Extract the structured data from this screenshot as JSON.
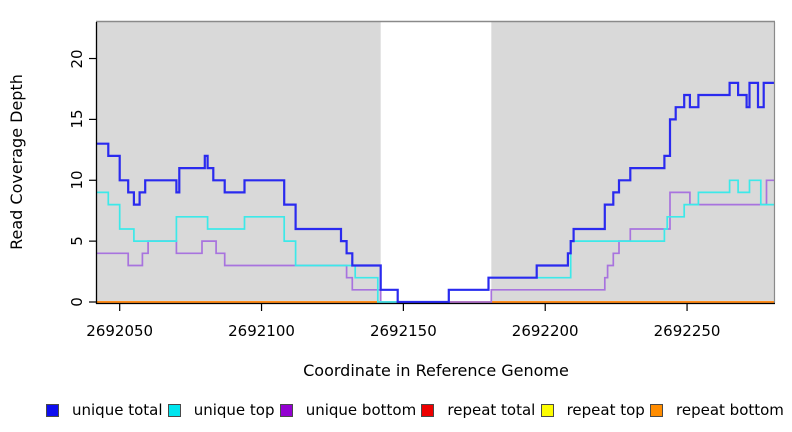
{
  "chart_data": {
    "type": "line",
    "subtype": "step",
    "title": "",
    "xlabel": "Coordinate in Reference Genome",
    "ylabel": "Read Coverage Depth",
    "x_range": [
      2692042,
      2692281
    ],
    "y_range": [
      0,
      23
    ],
    "x_ticks": [
      2692050,
      2692100,
      2692150,
      2692200,
      2692250
    ],
    "y_ticks": [
      0,
      5,
      10,
      15,
      20
    ],
    "grid": false,
    "legend_position": "bottom",
    "panel_background": "#d9d9d9",
    "outer_background": "#ffffff",
    "unshaded_x_region": [
      2692142,
      2692181
    ],
    "box_color": "#8a8a8a",
    "axis_color": "#000000",
    "draw_order": [
      "repeat top",
      "repeat total",
      "repeat bottom",
      "unique bottom",
      "unique top",
      "unique total"
    ],
    "series": [
      {
        "name": "unique total",
        "legend_color": "#0d0df0",
        "line_color": "#2a2aef",
        "line_width": 2.2,
        "points": [
          [
            2692042,
            13
          ],
          [
            2692046,
            12
          ],
          [
            2692050,
            10
          ],
          [
            2692053,
            9
          ],
          [
            2692055,
            8
          ],
          [
            2692057,
            9
          ],
          [
            2692059,
            10
          ],
          [
            2692070,
            9
          ],
          [
            2692071,
            11
          ],
          [
            2692080,
            12
          ],
          [
            2692081,
            11
          ],
          [
            2692083,
            10
          ],
          [
            2692087,
            9
          ],
          [
            2692094,
            10
          ],
          [
            2692108,
            8
          ],
          [
            2692112,
            6
          ],
          [
            2692128,
            5
          ],
          [
            2692130,
            4
          ],
          [
            2692132,
            3
          ],
          [
            2692142,
            1
          ],
          [
            2692148,
            0
          ],
          [
            2692166,
            1
          ],
          [
            2692180,
            2
          ],
          [
            2692197,
            3
          ],
          [
            2692208,
            4
          ],
          [
            2692209,
            5
          ],
          [
            2692210,
            6
          ],
          [
            2692221,
            8
          ],
          [
            2692224,
            9
          ],
          [
            2692226,
            10
          ],
          [
            2692230,
            11
          ],
          [
            2692242,
            12
          ],
          [
            2692244,
            15
          ],
          [
            2692246,
            16
          ],
          [
            2692249,
            17
          ],
          [
            2692251,
            16
          ],
          [
            2692254,
            17
          ],
          [
            2692265,
            18
          ],
          [
            2692268,
            17
          ],
          [
            2692271,
            16
          ],
          [
            2692272,
            18
          ],
          [
            2692275,
            16
          ],
          [
            2692277,
            18
          ],
          [
            2692281,
            18
          ]
        ]
      },
      {
        "name": "unique top",
        "legend_color": "#00e5ee",
        "line_color": "#3ce9e9",
        "line_width": 1.7,
        "points": [
          [
            2692042,
            9
          ],
          [
            2692046,
            8
          ],
          [
            2692050,
            6
          ],
          [
            2692055,
            5
          ],
          [
            2692070,
            7
          ],
          [
            2692081,
            6
          ],
          [
            2692094,
            7
          ],
          [
            2692108,
            5
          ],
          [
            2692112,
            3
          ],
          [
            2692133,
            2
          ],
          [
            2692141,
            0
          ],
          [
            2692166,
            1
          ],
          [
            2692180,
            2
          ],
          [
            2692209,
            5
          ],
          [
            2692242,
            6
          ],
          [
            2692243,
            7
          ],
          [
            2692249,
            8
          ],
          [
            2692254,
            9
          ],
          [
            2692265,
            10
          ],
          [
            2692268,
            9
          ],
          [
            2692272,
            10
          ],
          [
            2692276,
            8
          ],
          [
            2692281,
            8
          ]
        ]
      },
      {
        "name": "unique bottom",
        "legend_color": "#9301d1",
        "line_color": "#a873de",
        "line_width": 1.7,
        "points": [
          [
            2692042,
            4
          ],
          [
            2692053,
            3
          ],
          [
            2692058,
            4
          ],
          [
            2692060,
            5
          ],
          [
            2692070,
            4
          ],
          [
            2692079,
            5
          ],
          [
            2692084,
            4
          ],
          [
            2692087,
            3
          ],
          [
            2692130,
            2
          ],
          [
            2692132,
            1
          ],
          [
            2692142,
            0
          ],
          [
            2692181,
            1
          ],
          [
            2692221,
            2
          ],
          [
            2692222,
            3
          ],
          [
            2692224,
            4
          ],
          [
            2692226,
            5
          ],
          [
            2692230,
            6
          ],
          [
            2692244,
            9
          ],
          [
            2692251,
            8
          ],
          [
            2692278,
            10
          ],
          [
            2692281,
            10
          ]
        ]
      },
      {
        "name": "repeat total",
        "legend_color": "#ee0000",
        "line_color": "#e8445c",
        "line_width": 1.7,
        "points": [
          [
            2692042,
            0
          ],
          [
            2692281,
            0
          ]
        ]
      },
      {
        "name": "repeat top",
        "legend_color": "#fdfd00",
        "line_color": "#fdfd00",
        "line_width": 1.7,
        "points": [
          [
            2692042,
            0
          ],
          [
            2692281,
            0
          ]
        ]
      },
      {
        "name": "repeat bottom",
        "legend_color": "#ff8c00",
        "line_color": "#ff8c1a",
        "line_width": 2.0,
        "points": [
          [
            2692042,
            0
          ],
          [
            2692281,
            0
          ]
        ]
      }
    ]
  }
}
